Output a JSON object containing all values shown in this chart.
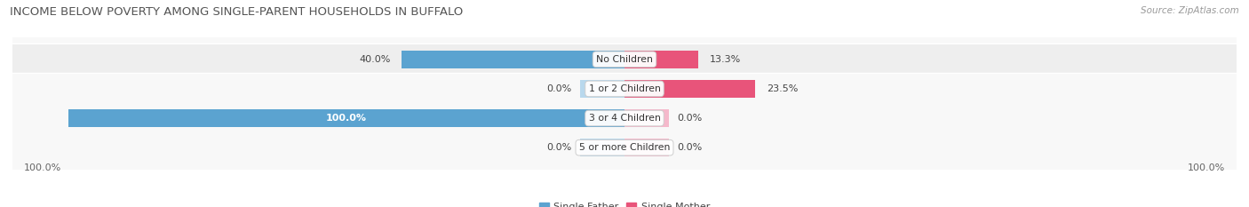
{
  "title": "INCOME BELOW POVERTY AMONG SINGLE-PARENT HOUSEHOLDS IN BUFFALO",
  "source": "Source: ZipAtlas.com",
  "categories": [
    "No Children",
    "1 or 2 Children",
    "3 or 4 Children",
    "5 or more Children"
  ],
  "single_father": [
    40.0,
    0.0,
    100.0,
    0.0
  ],
  "single_mother": [
    13.3,
    23.5,
    0.0,
    0.0
  ],
  "father_color_strong": "#5ba3d0",
  "father_color_light": "#b8d8ed",
  "mother_color_strong": "#e8547a",
  "mother_color_light": "#f5b8cb",
  "row_bg_odd": "#eeeeee",
  "row_bg_even": "#f8f8f8",
  "bar_height": 0.62,
  "title_fontsize": 9.5,
  "label_fontsize": 8.0,
  "category_fontsize": 7.8,
  "legend_fontsize": 8.0,
  "source_fontsize": 7.5,
  "xlim": 110,
  "figsize": [
    14.06,
    2.33
  ],
  "dpi": 100
}
